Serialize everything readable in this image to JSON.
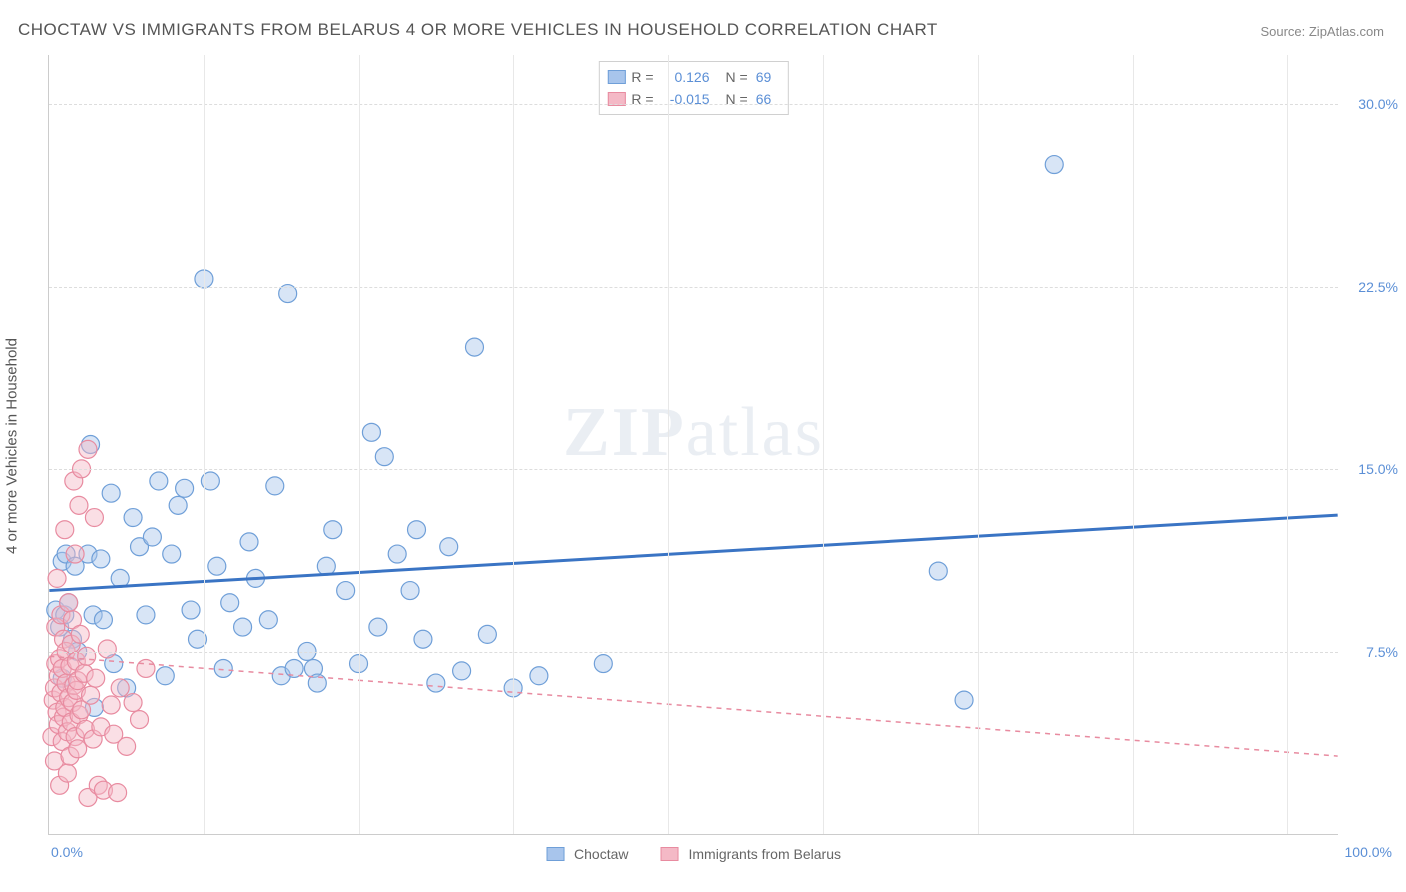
{
  "title": "CHOCTAW VS IMMIGRANTS FROM BELARUS 4 OR MORE VEHICLES IN HOUSEHOLD CORRELATION CHART",
  "source": "Source: ZipAtlas.com",
  "ylabel": "4 or more Vehicles in Household",
  "watermark": "ZIPatlas",
  "chart": {
    "type": "scatter",
    "xlim": [
      0,
      100
    ],
    "ylim": [
      0,
      32
    ],
    "xticks": [
      0,
      100
    ],
    "xtick_labels": [
      "0.0%",
      "100.0%"
    ],
    "yticks": [
      7.5,
      15.0,
      22.5,
      30.0
    ],
    "ytick_labels": [
      "7.5%",
      "15.0%",
      "22.5%",
      "30.0%"
    ],
    "vgrid_positions": [
      12,
      24,
      36,
      48,
      60,
      72,
      84,
      96
    ],
    "background_color": "#ffffff",
    "grid_color": "#dddddd",
    "axis_color": "#cccccc",
    "point_radius": 9,
    "point_opacity": 0.45,
    "series": [
      {
        "name": "Choctaw",
        "fill_color": "#a8c5ec",
        "stroke_color": "#6f9fd8",
        "line_color": "#3a74c4",
        "line_dash": "none",
        "line_width": 3,
        "R": "0.126",
        "N": "69",
        "trend": {
          "x1": 0,
          "y1": 10.0,
          "x2": 100,
          "y2": 13.1
        },
        "points": [
          [
            0.5,
            9.2
          ],
          [
            0.8,
            8.5
          ],
          [
            1.0,
            11.2
          ],
          [
            1.0,
            6.4
          ],
          [
            1.2,
            9.0
          ],
          [
            1.3,
            11.5
          ],
          [
            1.5,
            9.5
          ],
          [
            1.8,
            8.0
          ],
          [
            2.0,
            11.0
          ],
          [
            2.2,
            7.5
          ],
          [
            3.0,
            11.5
          ],
          [
            3.2,
            16.0
          ],
          [
            3.4,
            9.0
          ],
          [
            3.5,
            5.2
          ],
          [
            4.0,
            11.3
          ],
          [
            4.2,
            8.8
          ],
          [
            4.8,
            14.0
          ],
          [
            5.0,
            7.0
          ],
          [
            5.5,
            10.5
          ],
          [
            6.0,
            6.0
          ],
          [
            6.5,
            13.0
          ],
          [
            7.0,
            11.8
          ],
          [
            7.5,
            9.0
          ],
          [
            8.0,
            12.2
          ],
          [
            8.5,
            14.5
          ],
          [
            9.0,
            6.5
          ],
          [
            9.5,
            11.5
          ],
          [
            10.0,
            13.5
          ],
          [
            10.5,
            14.2
          ],
          [
            11.0,
            9.2
          ],
          [
            11.5,
            8.0
          ],
          [
            12.0,
            22.8
          ],
          [
            12.5,
            14.5
          ],
          [
            13.0,
            11.0
          ],
          [
            13.5,
            6.8
          ],
          [
            14.0,
            9.5
          ],
          [
            15.0,
            8.5
          ],
          [
            15.5,
            12.0
          ],
          [
            16.0,
            10.5
          ],
          [
            17.0,
            8.8
          ],
          [
            17.5,
            14.3
          ],
          [
            18.0,
            6.5
          ],
          [
            18.5,
            22.2
          ],
          [
            19.0,
            6.8
          ],
          [
            20.0,
            7.5
          ],
          [
            20.5,
            6.8
          ],
          [
            20.8,
            6.2
          ],
          [
            21.5,
            11.0
          ],
          [
            22.0,
            12.5
          ],
          [
            23.0,
            10.0
          ],
          [
            24.0,
            7.0
          ],
          [
            25.0,
            16.5
          ],
          [
            25.5,
            8.5
          ],
          [
            26.0,
            15.5
          ],
          [
            27.0,
            11.5
          ],
          [
            28.0,
            10.0
          ],
          [
            28.5,
            12.5
          ],
          [
            29.0,
            8.0
          ],
          [
            30.0,
            6.2
          ],
          [
            31.0,
            11.8
          ],
          [
            32.0,
            6.7
          ],
          [
            33.0,
            20.0
          ],
          [
            34.0,
            8.2
          ],
          [
            36.0,
            6.0
          ],
          [
            38.0,
            6.5
          ],
          [
            43.0,
            7.0
          ],
          [
            69.0,
            10.8
          ],
          [
            71.0,
            5.5
          ],
          [
            78.0,
            27.5
          ]
        ]
      },
      {
        "name": "Immigrants from Belarus",
        "fill_color": "#f4b9c6",
        "stroke_color": "#e88ba0",
        "line_color": "#e88ba0",
        "line_dash": "5,5",
        "line_width": 1.5,
        "R": "-0.015",
        "N": "66",
        "trend": {
          "x1": 0,
          "y1": 7.3,
          "x2": 100,
          "y2": 3.2
        },
        "points": [
          [
            0.2,
            4.0
          ],
          [
            0.3,
            5.5
          ],
          [
            0.4,
            6.0
          ],
          [
            0.4,
            3.0
          ],
          [
            0.5,
            7.0
          ],
          [
            0.5,
            8.5
          ],
          [
            0.6,
            5.0
          ],
          [
            0.6,
            10.5
          ],
          [
            0.7,
            6.5
          ],
          [
            0.7,
            4.5
          ],
          [
            0.8,
            7.2
          ],
          [
            0.8,
            2.0
          ],
          [
            0.9,
            9.0
          ],
          [
            0.9,
            5.8
          ],
          [
            1.0,
            6.8
          ],
          [
            1.0,
            3.8
          ],
          [
            1.1,
            8.0
          ],
          [
            1.1,
            4.8
          ],
          [
            1.2,
            12.5
          ],
          [
            1.2,
            5.2
          ],
          [
            1.3,
            6.2
          ],
          [
            1.3,
            7.5
          ],
          [
            1.4,
            2.5
          ],
          [
            1.4,
            4.2
          ],
          [
            1.5,
            5.6
          ],
          [
            1.5,
            9.5
          ],
          [
            1.6,
            3.2
          ],
          [
            1.6,
            6.9
          ],
          [
            1.7,
            4.6
          ],
          [
            1.7,
            7.8
          ],
          [
            1.8,
            5.4
          ],
          [
            1.8,
            8.8
          ],
          [
            1.9,
            14.5
          ],
          [
            1.9,
            6.1
          ],
          [
            2.0,
            4.0
          ],
          [
            2.0,
            11.5
          ],
          [
            2.1,
            5.9
          ],
          [
            2.1,
            7.1
          ],
          [
            2.2,
            3.5
          ],
          [
            2.2,
            6.3
          ],
          [
            2.3,
            13.5
          ],
          [
            2.3,
            4.9
          ],
          [
            2.4,
            8.2
          ],
          [
            2.5,
            5.1
          ],
          [
            2.5,
            15.0
          ],
          [
            2.7,
            6.6
          ],
          [
            2.8,
            4.3
          ],
          [
            2.9,
            7.3
          ],
          [
            3.0,
            15.8
          ],
          [
            3.0,
            1.5
          ],
          [
            3.2,
            5.7
          ],
          [
            3.4,
            3.9
          ],
          [
            3.5,
            13.0
          ],
          [
            3.6,
            6.4
          ],
          [
            3.8,
            2.0
          ],
          [
            4.0,
            4.4
          ],
          [
            4.2,
            1.8
          ],
          [
            4.5,
            7.6
          ],
          [
            4.8,
            5.3
          ],
          [
            5.0,
            4.1
          ],
          [
            5.3,
            1.7
          ],
          [
            5.5,
            6.0
          ],
          [
            6.0,
            3.6
          ],
          [
            6.5,
            5.4
          ],
          [
            7.0,
            4.7
          ],
          [
            7.5,
            6.8
          ]
        ]
      }
    ]
  },
  "legend_bottom": {
    "series1_label": "Choctaw",
    "series2_label": "Immigrants from Belarus"
  }
}
